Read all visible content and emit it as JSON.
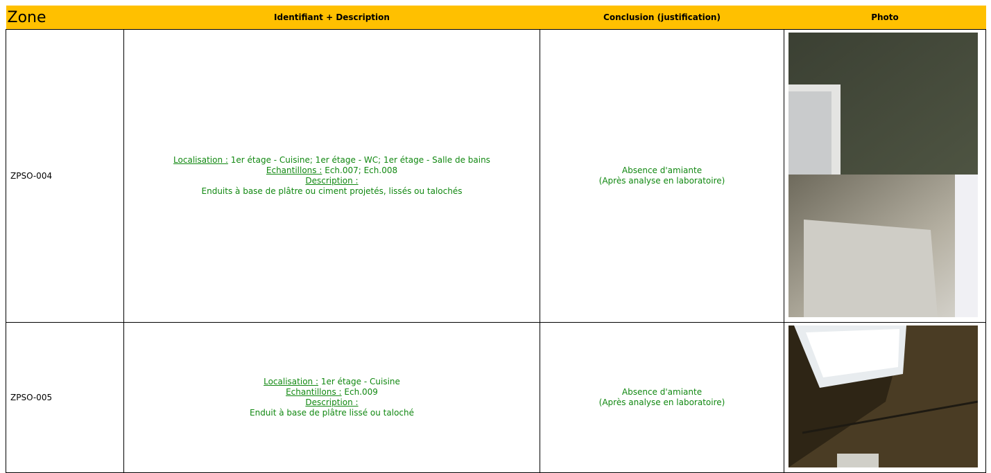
{
  "table": {
    "header": [
      "Zone",
      "Identifiant + Description",
      "Conclusion (justification)",
      "Photo"
    ],
    "rows": [
      {
        "zone": "ZPSO-004",
        "localisation_label": "Localisation :",
        "localisation": "1er étage - Cuisine; 1er étage - WC; 1er étage - Salle de bains",
        "echantillons_label": "Echantillons :",
        "echantillons": "Ech.007; Ech.008",
        "description_label": "Description :",
        "description": "Enduits à base de plâtre ou ciment projetés, lissés ou talochés",
        "conclusion": "Absence d'amiante",
        "conclusion_note": "(Après analyse en laboratoire)"
      },
      {
        "zone": "ZPSO-005",
        "localisation_label": "Localisation :",
        "localisation": "1er étage - Cuisine",
        "echantillons_label": "Echantillons :",
        "echantillons": "Ech.009",
        "description_label": "Description :",
        "description": "Enduit à base de plâtre lissé ou taloché",
        "conclusion": "Absence d'amiante",
        "conclusion_note": "(Après analyse en laboratoire)"
      }
    ]
  }
}
